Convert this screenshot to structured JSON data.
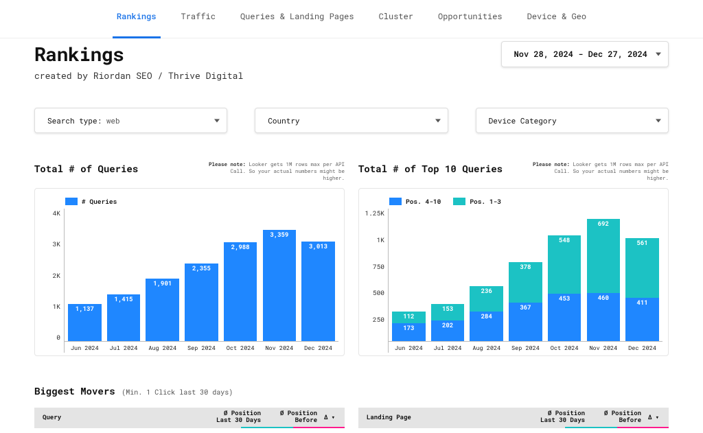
{
  "tabs": [
    "Rankings",
    "Traffic",
    "Queries & Landing Pages",
    "Cluster",
    "Opportunities",
    "Device & Geo"
  ],
  "active_tab": 0,
  "page_title": "Rankings",
  "page_subtitle": "created by Riordan SEO / Thrive Digital",
  "date_range": "Nov 28, 2024 - Dec 27, 2024",
  "filters": [
    {
      "label": "Search type: ",
      "value": "web"
    },
    {
      "label": "Country",
      "value": ""
    },
    {
      "label": "Device Category",
      "value": ""
    }
  ],
  "colors": {
    "blue": "#1f87ff",
    "teal": "#1cc2c4",
    "magenta": "#ff1b8d",
    "grid": "#bbbbbb",
    "card_border": "#e5e5e5",
    "bg": "#ffffff"
  },
  "chart_note": {
    "bold": "Please note:",
    "text": " Looker gets 1M rows max per API Call. So your actual numbers might be higher."
  },
  "chart_left": {
    "type": "bar",
    "title": "Total # of Queries",
    "legend": [
      {
        "label": "# Queries",
        "color": "#1f87ff"
      }
    ],
    "categories": [
      "Jun 2024",
      "Jul 2024",
      "Aug 2024",
      "Sep 2024",
      "Oct 2024",
      "Nov 2024",
      "Dec 2024"
    ],
    "values": [
      1137,
      1415,
      1901,
      2355,
      2988,
      3359,
      3013
    ],
    "value_labels": [
      "1,137",
      "1,415",
      "1,901",
      "2,355",
      "2,988",
      "3,359",
      "3,013"
    ],
    "ylim": [
      0,
      4000
    ],
    "yticks": [
      "4K",
      "3K",
      "2K",
      "1K",
      "0"
    ],
    "bar_color": "#1f87ff"
  },
  "chart_right": {
    "type": "stacked-bar",
    "title": "Total # of Top 10 Queries",
    "legend": [
      {
        "label": "Pos. 4-10",
        "color": "#1f87ff"
      },
      {
        "label": "Pos. 1-3",
        "color": "#1cc2c4"
      }
    ],
    "categories": [
      "Jun 2024",
      "Jul 2024",
      "Aug 2024",
      "Sep 2024",
      "Oct 2024",
      "Nov 2024",
      "Dec 2024"
    ],
    "series_bottom": {
      "color": "#1f87ff",
      "values": [
        173,
        202,
        284,
        367,
        453,
        460,
        411
      ]
    },
    "series_top": {
      "color": "#1cc2c4",
      "values": [
        112,
        153,
        236,
        378,
        548,
        692,
        561
      ]
    },
    "ylim": [
      0,
      1250
    ],
    "yticks": [
      "1.25K",
      "1K",
      "750",
      "500",
      "250",
      ""
    ]
  },
  "movers": {
    "title": "Biggest Movers",
    "subtitle": "(Min. 1 Click last 30 days)",
    "table_left": {
      "cols": [
        "Query",
        "Ø Position Last 30 Days",
        "Ø Position Before",
        "Δ ▾"
      ],
      "accent": [
        "#1cc2c4",
        "#ff1b8d"
      ]
    },
    "table_right": {
      "cols": [
        "Landing Page",
        "Ø Position Last 30 Days",
        "Ø Position Before",
        "Δ ▾"
      ],
      "accent": [
        "#1cc2c4",
        "#ff1b8d"
      ]
    }
  }
}
